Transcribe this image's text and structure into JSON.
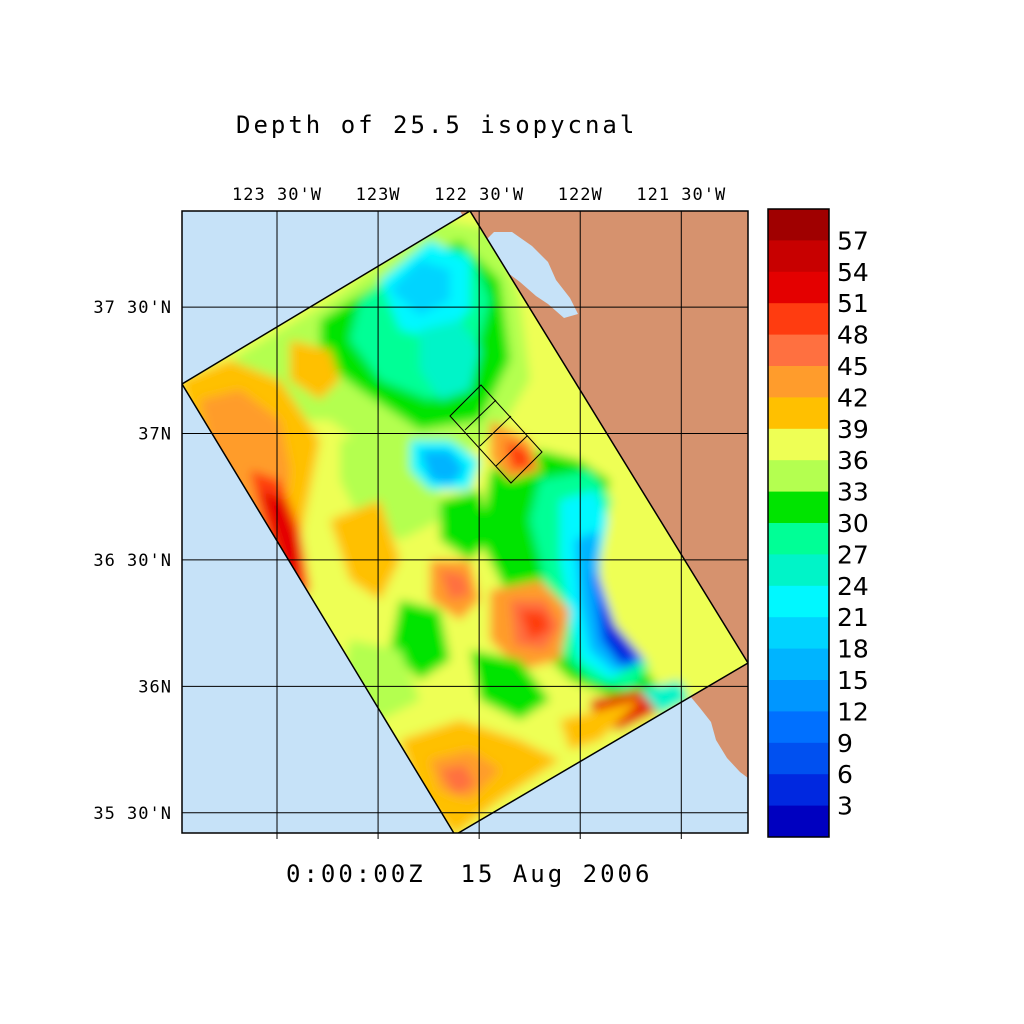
{
  "title": "Depth of 25.5 isopycnal",
  "time_label": "0:00:00Z  15 Aug 2006",
  "map": {
    "lon_range": [
      -123.97,
      -121.17
    ],
    "lat_range": [
      35.42,
      37.88
    ],
    "lon_ticks": [
      {
        "value": -123.5,
        "label": "123 30'W"
      },
      {
        "value": -123.0,
        "label": "123W"
      },
      {
        "value": -122.5,
        "label": "122 30'W"
      },
      {
        "value": -122.0,
        "label": "122W"
      },
      {
        "value": -121.5,
        "label": "121 30'W"
      }
    ],
    "lat_ticks": [
      {
        "value": 37.5,
        "label": "37 30'N"
      },
      {
        "value": 37.0,
        "label": "37N"
      },
      {
        "value": 36.5,
        "label": "36 30'N"
      },
      {
        "value": 36.0,
        "label": "36N"
      },
      {
        "value": 35.5,
        "label": "35 30'N"
      }
    ],
    "grid": true,
    "colors": {
      "ocean": "#c6e2f8",
      "land": "#d6926e",
      "grid": "#000000"
    }
  },
  "colorbar": {
    "labels": [
      "57",
      "54",
      "51",
      "48",
      "45",
      "42",
      "39",
      "36",
      "33",
      "30",
      "27",
      "24",
      "21",
      "18",
      "15",
      "12",
      "9",
      "6",
      "3"
    ],
    "colors": [
      "#a00000",
      "#c80000",
      "#e40000",
      "#ff3c10",
      "#ff7040",
      "#ff9c2c",
      "#ffc000",
      "#eeff55",
      "#b4ff50",
      "#00e400",
      "#00ff96",
      "#00f4c8",
      "#00f8ff",
      "#00d4ff",
      "#00b4ff",
      "#0096ff",
      "#0070ff",
      "#0050f0",
      "#0028e0",
      "#0000c0"
    ]
  }
}
